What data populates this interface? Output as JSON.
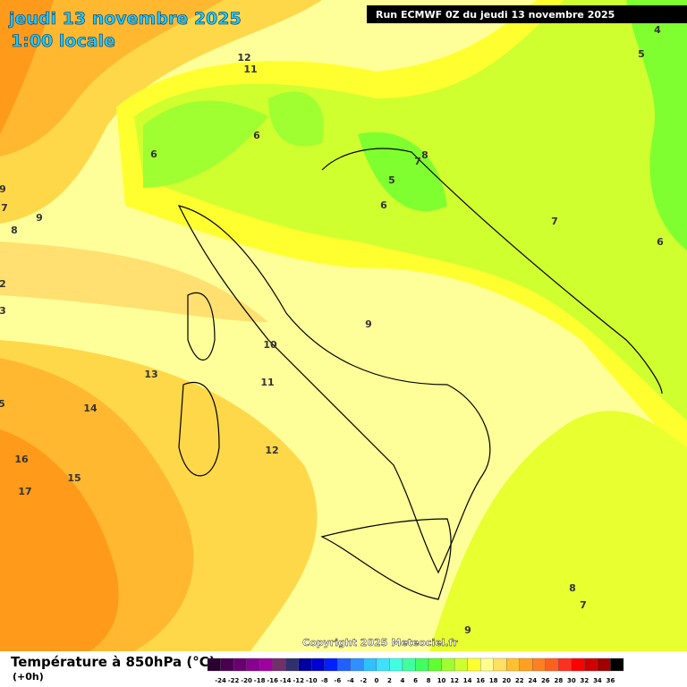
{
  "header": {
    "title": "jeudi 13 novembre 2025",
    "time": "1:00 locale",
    "run": "Run ECMWF 0Z du jeudi 13 novembre 2025"
  },
  "map": {
    "contour_labels": [
      12,
      11,
      6,
      6,
      5,
      7,
      8,
      6,
      7,
      6,
      9,
      8,
      7,
      9,
      2,
      3,
      9,
      10,
      11,
      13,
      14,
      12,
      16,
      15,
      17,
      5,
      4,
      5,
      8,
      7,
      9
    ],
    "copyright": "Copyright 2025 Meteociel.fr"
  },
  "legend": {
    "title": "Température à 850hPa (°C)",
    "lead": "(+0h)",
    "ticks": [
      -24,
      -22,
      -20,
      -18,
      -16,
      -14,
      -12,
      -10,
      -8,
      -6,
      -4,
      -2,
      0,
      2,
      4,
      6,
      8,
      10,
      12,
      14,
      16,
      18,
      20,
      22,
      24,
      26,
      28,
      30,
      32,
      34,
      36
    ],
    "colors": [
      "#2a0030",
      "#4a0050",
      "#6a0070",
      "#8a0090",
      "#a000a0",
      "#70306a",
      "#303070",
      "#0000a0",
      "#0000d0",
      "#0020ff",
      "#2060ff",
      "#3090ff",
      "#30c0ff",
      "#40e0ff",
      "#40ffe0",
      "#40ffa0",
      "#40ff60",
      "#60ff30",
      "#a0ff30",
      "#d0ff30",
      "#ffff30",
      "#ffff90",
      "#ffe060",
      "#ffc030",
      "#ffa020",
      "#ff8020",
      "#ff6020",
      "#ff3020",
      "#ff0000",
      "#d00000",
      "#a00000",
      "#000000"
    ]
  }
}
